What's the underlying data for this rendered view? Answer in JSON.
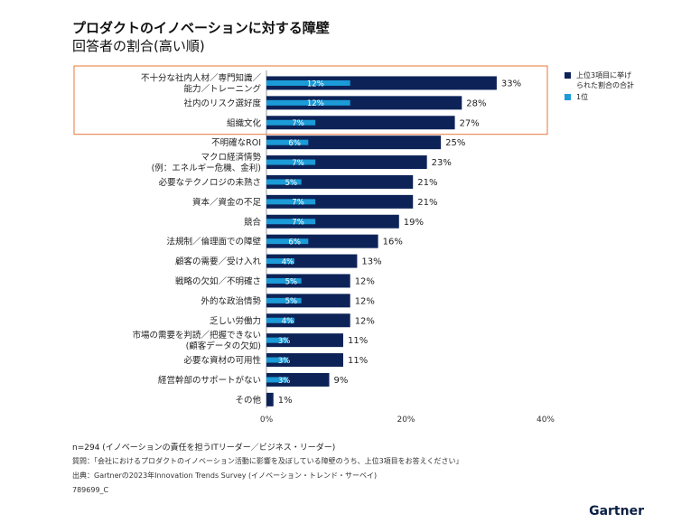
{
  "title": "プロダクトのイノベーションに対する障壁",
  "subtitle": "回答者の割合(高い順)",
  "chart_data": {
    "type": "bar",
    "orientation": "horizontal",
    "categories": [
      [
        "不十分な社内人材／専門知識／",
        "能力／トレーニング"
      ],
      [
        "社内のリスク選好度"
      ],
      [
        "組織文化"
      ],
      [
        "不明確なROI"
      ],
      [
        "マクロ経済情勢",
        "(例：エネルギー危機、金利)"
      ],
      [
        "必要なテクノロジの未熟さ"
      ],
      [
        "資本／資金の不足"
      ],
      [
        "競合"
      ],
      [
        "法規制／倫理面での障壁"
      ],
      [
        "顧客の需要／受け入れ"
      ],
      [
        "戦略の欠如／不明確さ"
      ],
      [
        "外的な政治情勢"
      ],
      [
        "乏しい労働力"
      ],
      [
        "市場の需要を判読／把握できない",
        "(顧客データの欠如)"
      ],
      [
        "必要な資材の可用性"
      ],
      [
        "経営幹部のサポートがない"
      ],
      [
        "その他"
      ]
    ],
    "series": [
      {
        "name": "上位3項目に挙げられた割合の合計",
        "color": "#0d2358",
        "values": [
          33,
          28,
          27,
          25,
          23,
          21,
          21,
          19,
          16,
          13,
          12,
          12,
          12,
          11,
          11,
          9,
          1
        ],
        "labels": [
          "33%",
          "28%",
          "27%",
          "25%",
          "23%",
          "21%",
          "21%",
          "19%",
          "16%",
          "13%",
          "12%",
          "12%",
          "12%",
          "11%",
          "11%",
          "9%",
          "1%"
        ]
      },
      {
        "name": "1位",
        "color": "#1b9bd7",
        "values": [
          12,
          12,
          7,
          6,
          7,
          5,
          7,
          7,
          6,
          4,
          5,
          5,
          4,
          3,
          3,
          3,
          null
        ],
        "labels": [
          "12%",
          "12%",
          "7%",
          "6%",
          "7%",
          "5%",
          "7%",
          "7%",
          "6%",
          "4%",
          "5%",
          "5%",
          "4%",
          "3%",
          "3%",
          "3%",
          ""
        ]
      }
    ],
    "legend_lines": [
      [
        "上位3項目に挙げ",
        "られた割合の合計"
      ],
      [
        "1位"
      ]
    ],
    "xlim": [
      0,
      40
    ],
    "xticks": [
      "0%",
      "20%",
      "40%"
    ],
    "legend_position": "right",
    "highlight_color": "#e8773a",
    "highlight_rows": 3
  },
  "footer": {
    "note": "n=294 (イノベーションの責任を担うITリーダー／ビジネス・リーダー)",
    "question": "質問：「会社におけるプロダクトのイノベーション活動に影響を及ぼしている障壁のうち、上位3項目をお答えください」",
    "source": "出典：Gartnerの2023年Innovation Trends Survey (イノベーション・トレンド・サーベイ)",
    "id": "789699_C"
  },
  "brand": "Gartner"
}
